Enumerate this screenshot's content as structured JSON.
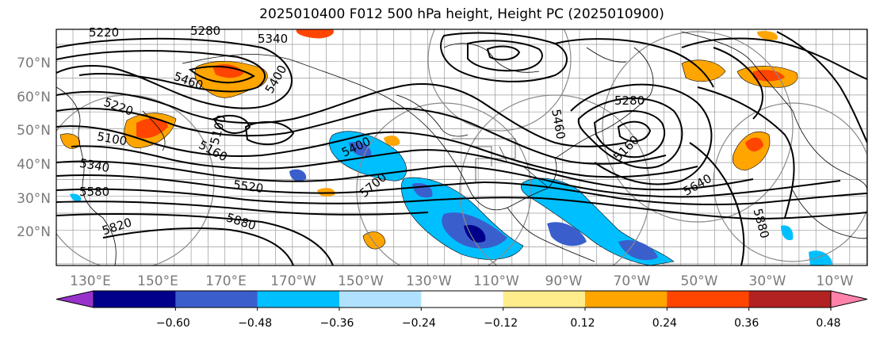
{
  "title": "2025010400 F012 500 hPa height, Height PC (2025010900)",
  "lat_labels": [
    "70°N",
    "60°N",
    "50°N",
    "40°N",
    "30°N",
    "20°N"
  ],
  "lon_labels": [
    "130°E",
    "150°E",
    "170°E",
    "170°W",
    "150°W",
    "130°W",
    "110°W",
    "90°W",
    "70°W",
    "50°W",
    "30°W",
    "10°W"
  ],
  "contour_labels": [
    {
      "text": "5220"
    },
    {
      "text": "5280"
    },
    {
      "text": "5340"
    },
    {
      "text": "5460"
    },
    {
      "text": "5400"
    },
    {
      "text": "5220"
    },
    {
      "text": "5100"
    },
    {
      "text": "5340"
    },
    {
      "text": "5580"
    },
    {
      "text": "5820"
    },
    {
      "text": "5880"
    },
    {
      "text": "5160"
    },
    {
      "text": "5100"
    },
    {
      "text": "5520"
    },
    {
      "text": "5400"
    },
    {
      "text": "5700"
    },
    {
      "text": "5280"
    },
    {
      "text": "5160"
    },
    {
      "text": "5640"
    },
    {
      "text": "5880"
    },
    {
      "text": "5460"
    }
  ],
  "colorbar": {
    "colors": [
      "#9932CC",
      "#00008B",
      "#3A5FCD",
      "#00BFFF",
      "#B0E2FF",
      "#FFFFFF",
      "#FFEC8B",
      "#FFA500",
      "#FF4500",
      "#B22222",
      "#FF82AB"
    ],
    "labels": [
      "−0.60",
      "−0.48",
      "−0.36",
      "−0.24",
      "−0.12",
      "0.12",
      "0.24",
      "0.36",
      "0.48",
      "0.60"
    ]
  }
}
